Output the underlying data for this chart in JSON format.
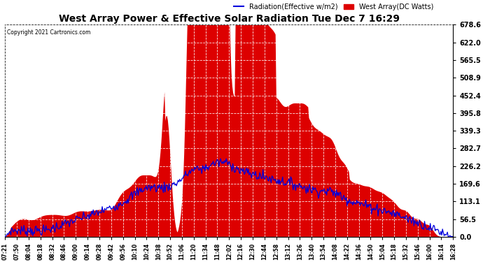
{
  "title": "West Array Power & Effective Solar Radiation Tue Dec 7 16:29",
  "copyright": "Copyright 2021 Cartronics.com",
  "legend_radiation": "Radiation(Effective w/m2)",
  "legend_west": "West Array(DC Watts)",
  "ymax": 678.6,
  "yticks": [
    0.0,
    56.5,
    113.1,
    169.6,
    226.2,
    282.7,
    339.3,
    395.8,
    452.4,
    508.9,
    565.5,
    622.0,
    678.6
  ],
  "bg_color": "#ffffff",
  "plot_bg_color": "#ffffff",
  "grid_color": "#aaaaaa",
  "bar_color": "#dd0000",
  "line_color": "#0000dd",
  "title_color": "#000000",
  "copyright_color": "#000000",
  "legend_radiation_color": "#0000dd",
  "legend_west_color": "#dd0000"
}
